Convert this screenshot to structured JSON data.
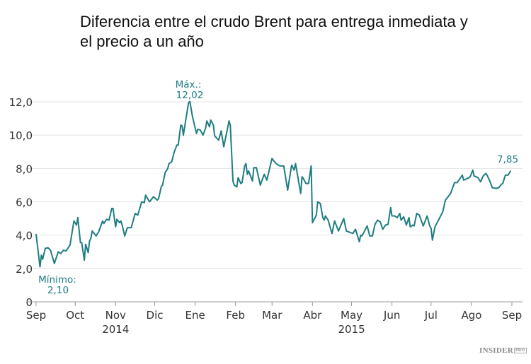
{
  "chart_data": {
    "type": "line",
    "title": "Diferencia entre el crudo Brent para entrega inmediata y el precio a un año",
    "xlabel": "",
    "ylabel": "",
    "ylim": [
      0,
      12
    ],
    "yticks": [
      "0",
      "2,0",
      "4,0",
      "6,0",
      "8,0",
      "10,0",
      "12,0"
    ],
    "ytick_values": [
      0,
      2,
      4,
      6,
      8,
      10,
      12
    ],
    "xrange": [
      "2014-09-01",
      "2015-09-01"
    ],
    "xticks": [
      {
        "date": "2014-09-01",
        "label": "Sep"
      },
      {
        "date": "2014-10-01",
        "label": "Oct"
      },
      {
        "date": "2014-11-01",
        "label": "Nov"
      },
      {
        "date": "2014-12-01",
        "label": "Dic"
      },
      {
        "date": "2015-01-01",
        "label": "Ene"
      },
      {
        "date": "2015-02-01",
        "label": "Feb"
      },
      {
        "date": "2015-03-01",
        "label": "Mar"
      },
      {
        "date": "2015-04-01",
        "label": "Abr"
      },
      {
        "date": "2015-05-01",
        "label": "May"
      },
      {
        "date": "2015-06-01",
        "label": "Jun"
      },
      {
        "date": "2015-07-01",
        "label": "Jul"
      },
      {
        "date": "2015-08-01",
        "label": "Ago"
      },
      {
        "date": "2015-09-01",
        "label": "Sep"
      }
    ],
    "year_labels": [
      {
        "date": "2014-11-01",
        "label": "2014"
      },
      {
        "date": "2015-05-01",
        "label": "2015"
      }
    ],
    "grid": "horizontal",
    "line_color": "#1f7d82",
    "annotations": {
      "max_label": "Máx.:",
      "max_value": "12,02",
      "min_label": "Mínimo:",
      "min_value": "2,10",
      "last_value": "7,85"
    },
    "series": [
      {
        "points": [
          [
            "2014-09-01",
            4.05
          ],
          [
            "2014-09-04",
            2.1
          ],
          [
            "2014-09-05",
            2.8
          ],
          [
            "2014-09-06",
            2.55
          ],
          [
            "2014-09-08",
            3.2
          ],
          [
            "2014-09-10",
            3.25
          ],
          [
            "2014-09-12",
            3.1
          ],
          [
            "2014-09-15",
            2.3
          ],
          [
            "2014-09-18",
            3.0
          ],
          [
            "2014-09-20",
            2.9
          ],
          [
            "2014-09-22",
            3.1
          ],
          [
            "2014-09-24",
            3.05
          ],
          [
            "2014-09-27",
            3.4
          ],
          [
            "2014-09-30",
            4.85
          ],
          [
            "2014-10-02",
            4.6
          ],
          [
            "2014-10-03",
            5.05
          ],
          [
            "2014-10-05",
            3.55
          ],
          [
            "2014-10-06",
            3.55
          ],
          [
            "2014-10-08",
            2.5
          ],
          [
            "2014-10-09",
            3.45
          ],
          [
            "2014-10-11",
            2.95
          ],
          [
            "2014-10-12",
            3.65
          ],
          [
            "2014-10-13",
            3.8
          ],
          [
            "2014-10-14",
            4.25
          ],
          [
            "2014-10-17",
            3.95
          ],
          [
            "2014-10-19",
            4.2
          ],
          [
            "2014-10-22",
            4.85
          ],
          [
            "2014-10-23",
            4.7
          ],
          [
            "2014-10-25",
            4.95
          ],
          [
            "2014-10-27",
            4.9
          ],
          [
            "2014-10-29",
            5.6
          ],
          [
            "2014-10-30",
            5.6
          ],
          [
            "2014-11-01",
            4.5
          ],
          [
            "2014-11-02",
            4.95
          ],
          [
            "2014-11-04",
            4.75
          ],
          [
            "2014-11-05",
            4.85
          ],
          [
            "2014-11-06",
            4.6
          ],
          [
            "2014-11-08",
            3.95
          ],
          [
            "2014-11-10",
            4.45
          ],
          [
            "2014-11-13",
            4.45
          ],
          [
            "2014-11-16",
            5.3
          ],
          [
            "2014-11-18",
            5.2
          ],
          [
            "2014-11-21",
            6.0
          ],
          [
            "2014-11-23",
            5.95
          ],
          [
            "2014-11-24",
            6.4
          ],
          [
            "2014-11-27",
            6.0
          ],
          [
            "2014-11-30",
            6.3
          ],
          [
            "2014-12-03",
            6.1
          ],
          [
            "2014-12-04",
            6.2
          ],
          [
            "2014-12-06",
            6.9
          ],
          [
            "2014-12-07",
            7.0
          ],
          [
            "2014-12-09",
            7.75
          ],
          [
            "2014-12-11",
            8.0
          ],
          [
            "2014-12-12",
            8.3
          ],
          [
            "2014-12-14",
            8.4
          ],
          [
            "2014-12-16",
            9.0
          ],
          [
            "2014-12-18",
            9.4
          ],
          [
            "2014-12-19",
            9.4
          ],
          [
            "2014-12-21",
            10.6
          ],
          [
            "2014-12-22",
            10.55
          ],
          [
            "2014-12-23",
            10.0
          ],
          [
            "2014-12-25",
            11.0
          ],
          [
            "2014-12-27",
            11.95
          ],
          [
            "2014-12-28",
            12.02
          ],
          [
            "2014-12-30",
            11.1
          ],
          [
            "2015-01-02",
            10.1
          ],
          [
            "2015-01-03",
            10.35
          ],
          [
            "2015-01-05",
            10.3
          ],
          [
            "2015-01-07",
            10.0
          ],
          [
            "2015-01-09",
            10.4
          ],
          [
            "2015-01-10",
            10.85
          ],
          [
            "2015-01-12",
            10.5
          ],
          [
            "2015-01-13",
            10.9
          ],
          [
            "2015-01-15",
            10.6
          ],
          [
            "2015-01-16",
            9.95
          ],
          [
            "2015-01-19",
            9.7
          ],
          [
            "2015-01-21",
            10.25
          ],
          [
            "2015-01-23",
            9.3
          ],
          [
            "2015-01-27",
            10.85
          ],
          [
            "2015-01-28",
            10.6
          ],
          [
            "2015-01-30",
            7.25
          ],
          [
            "2015-01-31",
            7.0
          ],
          [
            "2015-02-02",
            6.9
          ],
          [
            "2015-02-03",
            7.45
          ],
          [
            "2015-02-05",
            7.1
          ],
          [
            "2015-02-06",
            7.15
          ],
          [
            "2015-02-08",
            8.15
          ],
          [
            "2015-02-09",
            8.3
          ],
          [
            "2015-02-10",
            7.65
          ],
          [
            "2015-02-11",
            7.85
          ],
          [
            "2015-02-14",
            7.25
          ],
          [
            "2015-02-15",
            8.05
          ],
          [
            "2015-02-17",
            8.05
          ],
          [
            "2015-02-20",
            7.0
          ],
          [
            "2015-02-23",
            7.65
          ],
          [
            "2015-02-25",
            7.3
          ],
          [
            "2015-03-01",
            8.6
          ],
          [
            "2015-03-04",
            8.3
          ],
          [
            "2015-03-07",
            8.15
          ],
          [
            "2015-03-10",
            8.15
          ],
          [
            "2015-03-13",
            6.7
          ],
          [
            "2015-03-16",
            8.2
          ],
          [
            "2015-03-18",
            7.9
          ],
          [
            "2015-03-19",
            8.3
          ],
          [
            "2015-03-23",
            6.5
          ],
          [
            "2015-03-24",
            7.5
          ],
          [
            "2015-03-25",
            7.4
          ],
          [
            "2015-03-27",
            7.1
          ],
          [
            "2015-03-29",
            7.1
          ],
          [
            "2015-03-31",
            8.15
          ],
          [
            "2015-04-01",
            4.75
          ],
          [
            "2015-04-04",
            5.2
          ],
          [
            "2015-04-05",
            6.0
          ],
          [
            "2015-04-07",
            5.9
          ],
          [
            "2015-04-09",
            5.05
          ],
          [
            "2015-04-10",
            4.9
          ],
          [
            "2015-04-11",
            5.15
          ],
          [
            "2015-04-13",
            4.9
          ],
          [
            "2015-04-16",
            4.1
          ],
          [
            "2015-04-18",
            4.85
          ],
          [
            "2015-04-21",
            4.25
          ],
          [
            "2015-04-25",
            5.0
          ],
          [
            "2015-04-27",
            4.25
          ],
          [
            "2015-05-02",
            4.1
          ],
          [
            "2015-05-04",
            4.35
          ],
          [
            "2015-05-07",
            3.6
          ],
          [
            "2015-05-08",
            4.0
          ],
          [
            "2015-05-09",
            3.95
          ],
          [
            "2015-05-13",
            4.55
          ],
          [
            "2015-05-15",
            3.95
          ],
          [
            "2015-05-17",
            3.95
          ],
          [
            "2015-05-19",
            4.65
          ],
          [
            "2015-05-21",
            4.9
          ],
          [
            "2015-05-23",
            4.8
          ],
          [
            "2015-05-25",
            4.35
          ],
          [
            "2015-05-27",
            4.6
          ],
          [
            "2015-05-29",
            4.65
          ],
          [
            "2015-05-31",
            5.65
          ],
          [
            "2015-06-01",
            5.15
          ],
          [
            "2015-06-03",
            5.15
          ],
          [
            "2015-06-05",
            5.05
          ],
          [
            "2015-06-07",
            5.3
          ],
          [
            "2015-06-08",
            4.9
          ],
          [
            "2015-06-10",
            5.1
          ],
          [
            "2015-06-12",
            4.6
          ],
          [
            "2015-06-14",
            5.05
          ],
          [
            "2015-06-15",
            4.5
          ],
          [
            "2015-06-17",
            4.6
          ],
          [
            "2015-06-18",
            4.55
          ],
          [
            "2015-06-20",
            5.3
          ],
          [
            "2015-06-22",
            5.2
          ],
          [
            "2015-06-25",
            4.55
          ],
          [
            "2015-06-28",
            5.15
          ],
          [
            "2015-06-30",
            4.55
          ],
          [
            "2015-07-01",
            4.4
          ],
          [
            "2015-07-02",
            3.7
          ],
          [
            "2015-07-04",
            4.5
          ],
          [
            "2015-07-07",
            4.95
          ],
          [
            "2015-07-10",
            5.4
          ],
          [
            "2015-07-12",
            6.1
          ],
          [
            "2015-07-16",
            6.5
          ],
          [
            "2015-07-19",
            7.15
          ],
          [
            "2015-07-21",
            7.15
          ],
          [
            "2015-07-25",
            7.6
          ],
          [
            "2015-07-26",
            7.3
          ],
          [
            "2015-07-29",
            7.4
          ],
          [
            "2015-07-31",
            7.5
          ],
          [
            "2015-08-02",
            7.9
          ],
          [
            "2015-08-03",
            7.55
          ],
          [
            "2015-08-06",
            7.45
          ],
          [
            "2015-08-08",
            7.2
          ],
          [
            "2015-08-10",
            7.55
          ],
          [
            "2015-08-12",
            7.7
          ],
          [
            "2015-08-13",
            7.6
          ],
          [
            "2015-08-15",
            7.25
          ],
          [
            "2015-08-17",
            6.85
          ],
          [
            "2015-08-20",
            6.8
          ],
          [
            "2015-08-22",
            6.85
          ],
          [
            "2015-08-24",
            7.05
          ],
          [
            "2015-08-25",
            7.1
          ],
          [
            "2015-08-27",
            7.6
          ],
          [
            "2015-08-29",
            7.6
          ],
          [
            "2015-08-31",
            7.85
          ]
        ]
      }
    ]
  },
  "branding": {
    "logo_text": "INSIDER",
    "logo_suffix": "PRO"
  }
}
